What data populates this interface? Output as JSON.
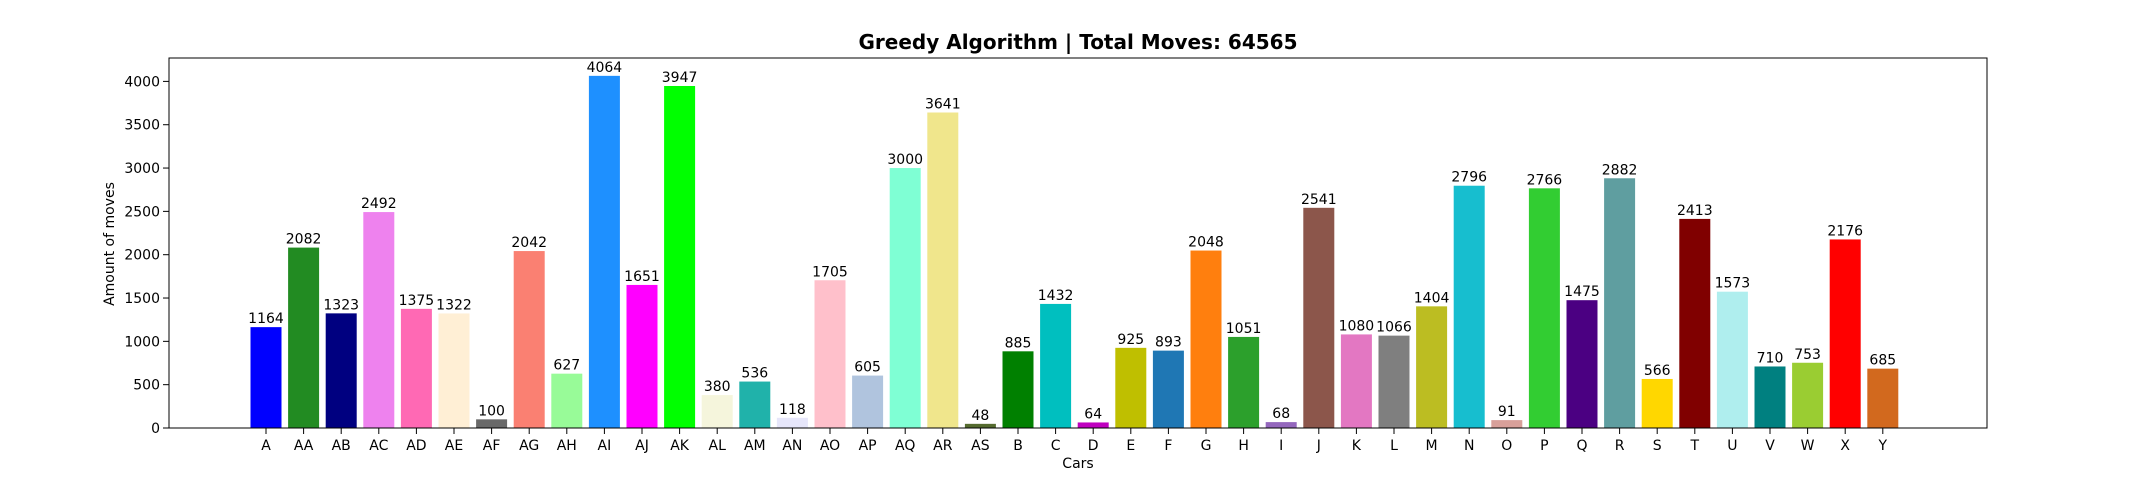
{
  "chart_data": {
    "type": "bar",
    "title": "Greedy Algorithm | Total Moves: 64565",
    "xlabel": "Cars",
    "ylabel": "Amount of moves",
    "ylim": [
      0,
      4270
    ],
    "yticks": [
      0,
      500,
      1000,
      1500,
      2000,
      2500,
      3000,
      3500,
      4000
    ],
    "grid": false,
    "categories": [
      "A",
      "AA",
      "AB",
      "AC",
      "AD",
      "AE",
      "AF",
      "AG",
      "AH",
      "AI",
      "AJ",
      "AK",
      "AL",
      "AM",
      "AN",
      "AO",
      "AP",
      "AQ",
      "AR",
      "AS",
      "B",
      "C",
      "D",
      "E",
      "F",
      "G",
      "H",
      "I",
      "J",
      "K",
      "L",
      "M",
      "N",
      "O",
      "P",
      "Q",
      "R",
      "S",
      "T",
      "U",
      "V",
      "W",
      "X",
      "Y"
    ],
    "values": [
      1164,
      2082,
      1323,
      2492,
      1375,
      1322,
      100,
      2042,
      627,
      4064,
      1651,
      3947,
      380,
      536,
      118,
      1705,
      605,
      3000,
      3641,
      48,
      885,
      1432,
      64,
      925,
      893,
      2048,
      1051,
      68,
      2541,
      1080,
      1066,
      1404,
      2796,
      91,
      2766,
      1475,
      2882,
      566,
      2413,
      1573,
      710,
      753,
      2176,
      685
    ],
    "colors": [
      "#0000ff",
      "#228b22",
      "#000080",
      "#ee82ee",
      "#ff69b4",
      "#ffefd5",
      "#696969",
      "#fa8072",
      "#98fb98",
      "#1e90ff",
      "#ff00ff",
      "#00ff00",
      "#f5f5dc",
      "#20b2aa",
      "#e6e6fa",
      "#ffc0cb",
      "#b0c4de",
      "#7fffd4",
      "#f0e68c",
      "#556b2f",
      "#008000",
      "#00bfbf",
      "#bf00bf",
      "#bfbf00",
      "#1f77b4",
      "#ff7f0e",
      "#2ca02c",
      "#9467bd",
      "#8c564b",
      "#e377c2",
      "#7f7f7f",
      "#bcbd22",
      "#17becf",
      "#d8a09a",
      "#32cd32",
      "#4b0082",
      "#5f9ea0",
      "#ffd700",
      "#800000",
      "#afeeee",
      "#008080",
      "#9acd32",
      "#ff0000",
      "#d2691e"
    ]
  }
}
